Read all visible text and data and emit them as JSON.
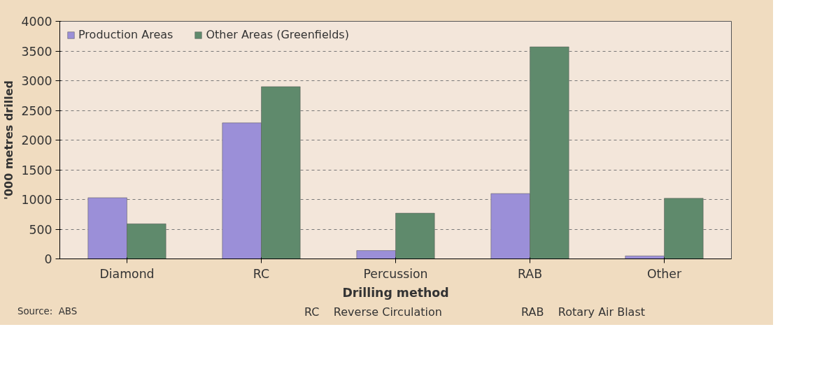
{
  "chart_data": {
    "type": "bar",
    "xlabel": "Drilling method",
    "ylabel": "'000 metres drilled",
    "categories": [
      "Diamond",
      "RC",
      "Percussion",
      "RAB",
      "Other"
    ],
    "series": [
      {
        "name": "Production Areas",
        "color": "#9b8fd8",
        "values": [
          1030,
          2290,
          140,
          1100,
          50
        ]
      },
      {
        "name": "Other Areas (Greenfields)",
        "color": "#5f8a6c",
        "values": [
          590,
          2900,
          770,
          3570,
          1020
        ]
      }
    ],
    "ylim": [
      0,
      4000
    ],
    "yticks": [
      0,
      500,
      1000,
      1500,
      2000,
      2500,
      3000,
      3500,
      4000
    ],
    "grid": "y",
    "legend": "top left",
    "annotations": [
      "RC    Reverse Circulation",
      "RAB    Rotary Air Blast",
      "Source:  ABS"
    ]
  }
}
